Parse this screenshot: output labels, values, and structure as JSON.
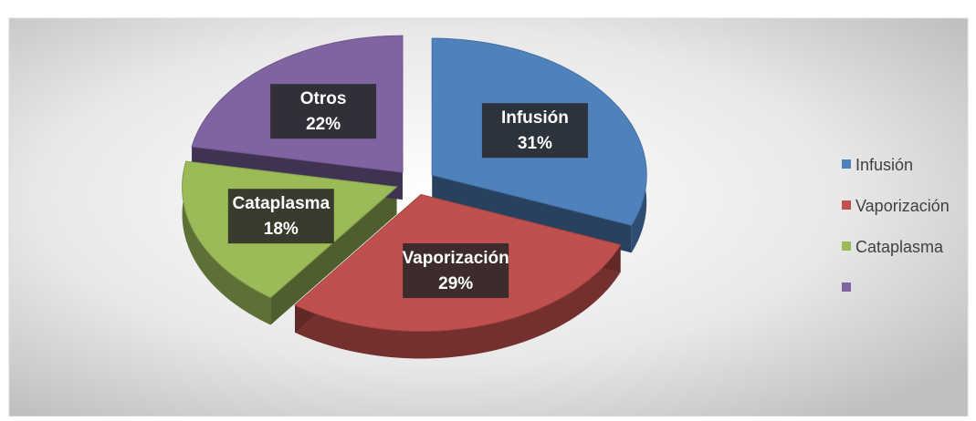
{
  "chart_data": {
    "type": "pie",
    "categories": [
      "Infusión",
      "Vaporización",
      "Cataplasma",
      "Otros"
    ],
    "values": [
      31,
      29,
      18,
      22
    ],
    "value_labels": [
      "31%",
      "29%",
      "18%",
      "22%"
    ],
    "colors": [
      "#4f81bd",
      "#c0504d",
      "#9bbb59",
      "#8064a2"
    ],
    "legend": {
      "position": "right",
      "names": [
        "Infusión",
        "Vaporización",
        "Cataplasma",
        null
      ]
    }
  }
}
